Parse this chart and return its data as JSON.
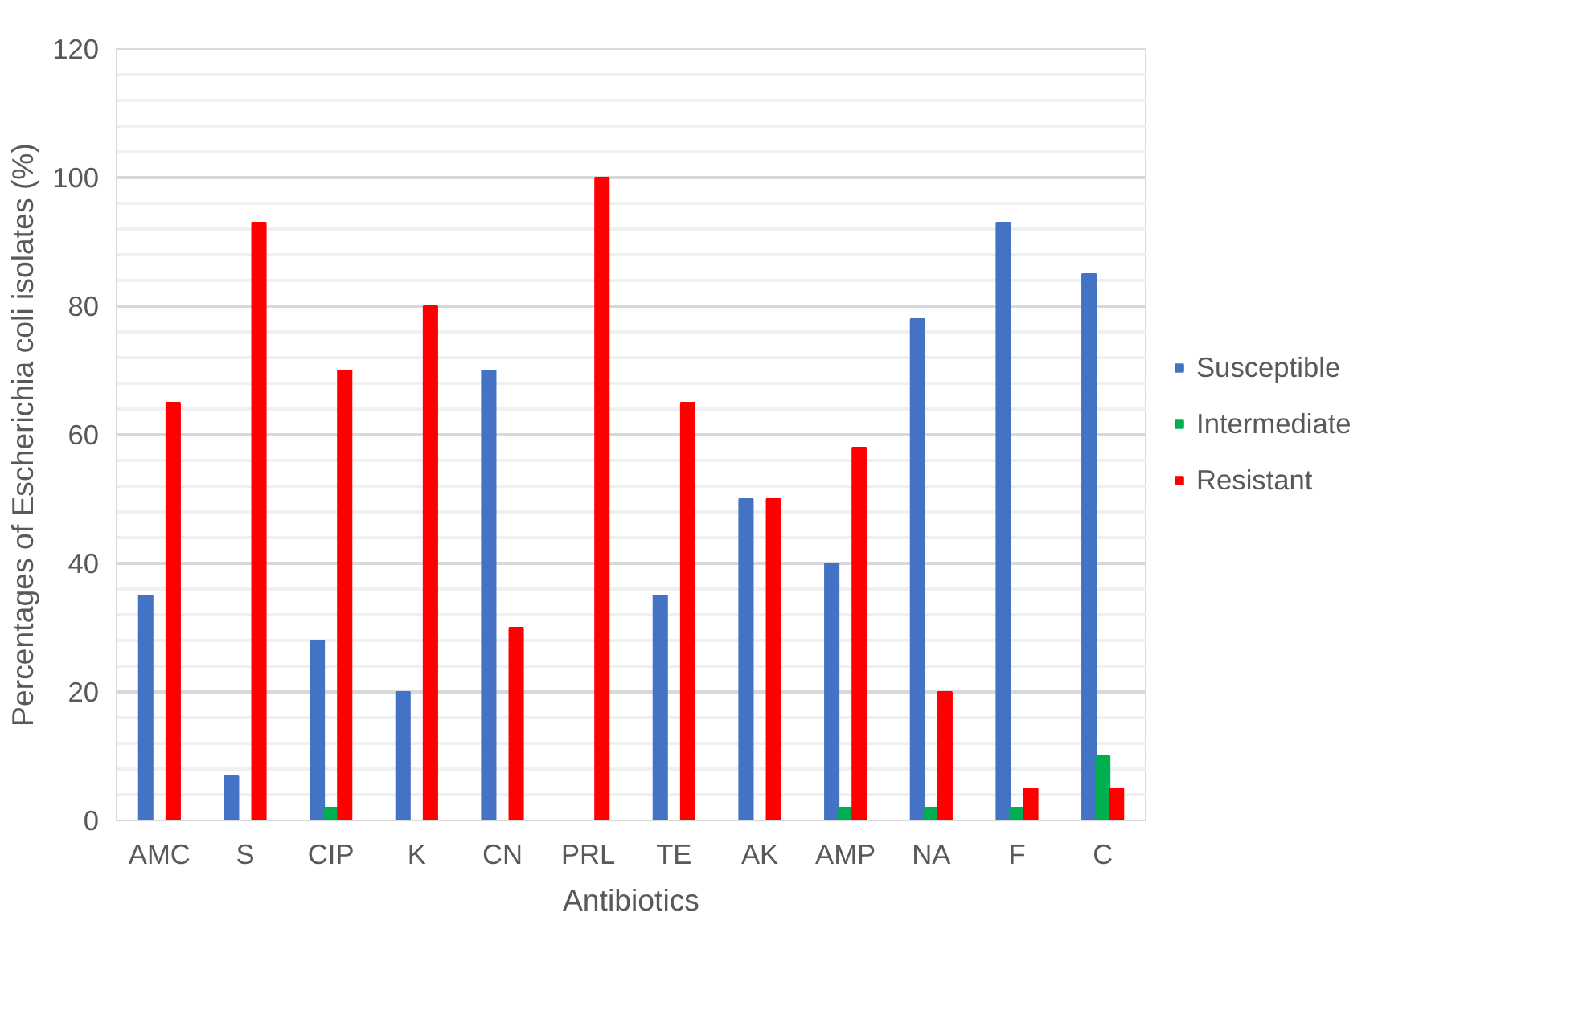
{
  "chart_data": {
    "type": "bar",
    "xlabel": "Antibiotics",
    "ylabel": "Percentages of Escherichia coli isolates (%)",
    "categories": [
      "AMC",
      "S",
      "CIP",
      "K",
      "CN",
      "PRL",
      "TE",
      "AK",
      "AMP",
      "NA",
      "F",
      "C"
    ],
    "series": [
      {
        "name": "Susceptible",
        "color": "#4472c4",
        "values": [
          35,
          7,
          28,
          20,
          70,
          0,
          35,
          50,
          40,
          78,
          93,
          85
        ]
      },
      {
        "name": "Intermediate",
        "color": "#00b050",
        "values": [
          0,
          0,
          2,
          0,
          0,
          0,
          0,
          0,
          2,
          2,
          2,
          10
        ]
      },
      {
        "name": "Resistant",
        "color": "#ff0000",
        "values": [
          65,
          93,
          70,
          80,
          30,
          100,
          65,
          50,
          58,
          20,
          5,
          5
        ]
      }
    ],
    "ylim": [
      0,
      120
    ],
    "yticks": [
      0,
      20,
      40,
      60,
      80,
      100,
      120
    ],
    "grid": "y",
    "legend": "right"
  }
}
